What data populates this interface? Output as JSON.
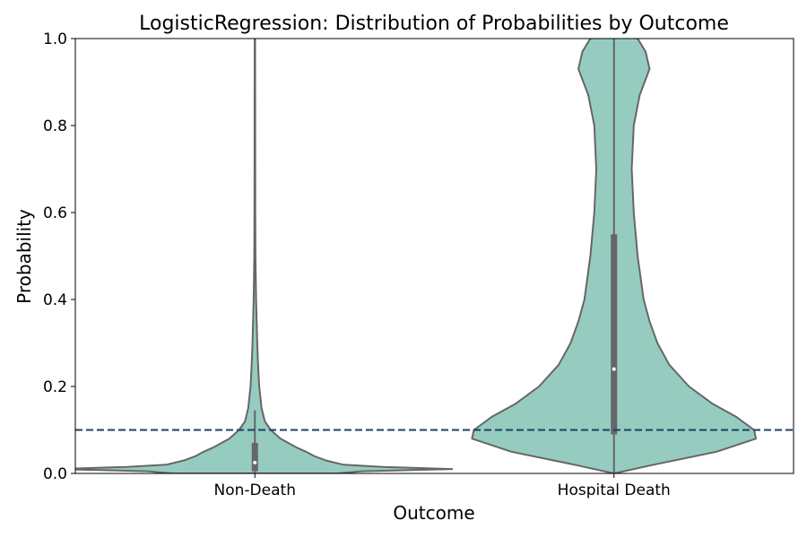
{
  "chart_data": {
    "type": "violin",
    "title": "LogisticRegression: Distribution of Probabilities by Outcome",
    "xlabel": "Outcome",
    "ylabel": "Probability",
    "categories": [
      "Non-Death",
      "Hospital Death"
    ],
    "ylim": [
      0.0,
      1.0
    ],
    "yticks": [
      0.0,
      0.2,
      0.4,
      0.6,
      0.8,
      1.0
    ],
    "ytick_labels": [
      "0.0",
      "0.2",
      "0.4",
      "0.6",
      "0.8",
      "1.0"
    ],
    "threshold": 0.1,
    "grid": false,
    "violins": [
      {
        "category": "Non-Death",
        "q1": 0.005,
        "median": 0.025,
        "q3": 0.07,
        "whisker_low": 0.0,
        "whisker_high": 0.145,
        "density": [
          [
            0.0,
            0.42
          ],
          [
            0.005,
            0.54
          ],
          [
            0.01,
            1.0
          ],
          [
            0.015,
            0.65
          ],
          [
            0.02,
            0.45
          ],
          [
            0.03,
            0.36
          ],
          [
            0.04,
            0.3
          ],
          [
            0.05,
            0.26
          ],
          [
            0.06,
            0.21
          ],
          [
            0.08,
            0.13
          ],
          [
            0.1,
            0.08
          ],
          [
            0.12,
            0.05
          ],
          [
            0.15,
            0.034
          ],
          [
            0.2,
            0.022
          ],
          [
            0.25,
            0.016
          ],
          [
            0.3,
            0.012
          ],
          [
            0.4,
            0.006
          ],
          [
            0.5,
            0.003
          ],
          [
            0.6,
            0.002
          ],
          [
            0.8,
            0.0015
          ],
          [
            1.0,
            0.001
          ]
        ]
      },
      {
        "category": "Hospital Death",
        "q1": 0.09,
        "median": 0.24,
        "q3": 0.55,
        "whisker_low": 0.0,
        "whisker_high": 1.0,
        "density": [
          [
            0.0,
            0.0
          ],
          [
            0.02,
            0.2
          ],
          [
            0.05,
            0.52
          ],
          [
            0.08,
            0.72
          ],
          [
            0.1,
            0.71
          ],
          [
            0.13,
            0.62
          ],
          [
            0.16,
            0.5
          ],
          [
            0.2,
            0.38
          ],
          [
            0.25,
            0.28
          ],
          [
            0.3,
            0.22
          ],
          [
            0.35,
            0.18
          ],
          [
            0.4,
            0.15
          ],
          [
            0.5,
            0.12
          ],
          [
            0.6,
            0.1
          ],
          [
            0.7,
            0.09
          ],
          [
            0.8,
            0.1
          ],
          [
            0.87,
            0.13
          ],
          [
            0.93,
            0.18
          ],
          [
            0.97,
            0.16
          ],
          [
            1.0,
            0.12
          ],
          [
            1.01,
            0.0
          ]
        ]
      }
    ],
    "colors": {
      "violin_fill": "#96ccc0",
      "violin_edge": "#666666",
      "box": "#666666",
      "median_dot": "#ffffff",
      "threshold_line": "#1f3f66"
    }
  }
}
